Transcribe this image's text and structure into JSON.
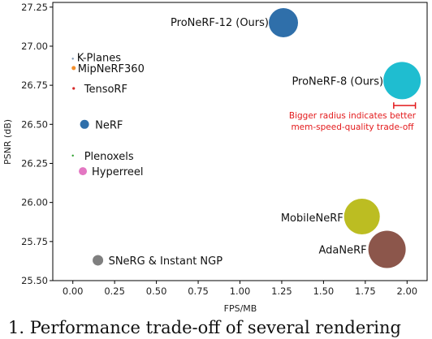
{
  "chart_data": {
    "type": "scatter",
    "xlabel": "FPS/MB",
    "ylabel": "PSNR (dB)",
    "xlim": [
      -0.12,
      2.12
    ],
    "ylim": [
      25.5,
      27.28
    ],
    "xticks": [
      "0.00",
      "0.25",
      "0.50",
      "0.75",
      "1.00",
      "1.25",
      "1.50",
      "1.75",
      "2.00"
    ],
    "yticks": [
      "25.50",
      "25.75",
      "26.00",
      "26.25",
      "26.50",
      "26.75",
      "27.00",
      "27.25"
    ],
    "grid": false,
    "points": [
      {
        "label": "ProNeRF-12 (Ours)",
        "x": 1.26,
        "y": 27.15,
        "color": "#2f6faa"
      },
      {
        "label": "K-Planes",
        "x": 0.0,
        "y": 26.92,
        "color": "#7a93b0"
      },
      {
        "label": "MipNeRF360",
        "x": 0.005,
        "y": 26.86,
        "color": "#f28e2b"
      },
      {
        "label": "ProNeRF-8 (Ours)",
        "x": 1.97,
        "y": 26.78,
        "color": "#1fbdd0"
      },
      {
        "label": "TensoRF",
        "x": 0.005,
        "y": 26.73,
        "color": "#d62728"
      },
      {
        "label": "NeRF",
        "x": 0.07,
        "y": 26.5,
        "color": "#2f6faa"
      },
      {
        "label": "Plenoxels",
        "x": 0.0,
        "y": 26.3,
        "color": "#2ca02c"
      },
      {
        "label": "Hyperreel",
        "x": 0.06,
        "y": 26.2,
        "color": "#e377c2"
      },
      {
        "label": "MobileNeRF",
        "x": 1.73,
        "y": 25.91,
        "color": "#bcbd22"
      },
      {
        "label": "AdaNeRF",
        "x": 1.88,
        "y": 25.7,
        "color": "#8c564b"
      },
      {
        "label": "SNeRG & Instant NGP",
        "x": 0.15,
        "y": 25.63,
        "color": "#7f7f7f"
      }
    ],
    "annotation": {
      "lines": [
        "Bigger radius indicates better",
        "mem-speed-quality trade-off"
      ],
      "color": "#e31a1c",
      "bracket_x": [
        1.92,
        2.05
      ],
      "bracket_y": 26.62
    }
  },
  "caption": "1.  Performance trade-off of several rendering"
}
